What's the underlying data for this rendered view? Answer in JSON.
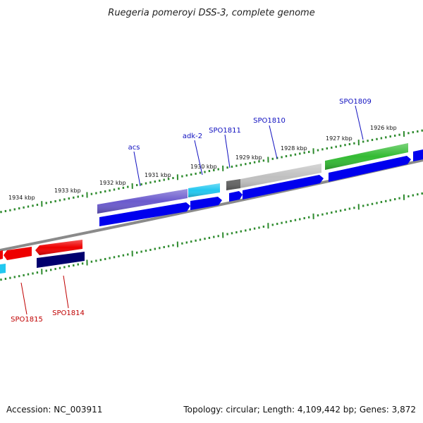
{
  "title": "Ruegeria pomeroyi DSS-3, complete genome",
  "footer": {
    "accession": "Accession: NC_003911",
    "summary": "Topology: circular; Length: 4,109,442 bp; Genes: 3,872"
  },
  "colors": {
    "backbone": "#8a8a8a",
    "tick": "#2e8b2e",
    "forward_label": "#1010c0",
    "reverse_label": "#c00000"
  },
  "tick_labels": [
    "1934 kbp",
    "1933 kbp",
    "1932 kbp",
    "1931 kbp",
    "1930 kbp",
    "1929 kbp",
    "1928 kbp",
    "1927 kbp",
    "1926 kbp"
  ],
  "gene_labels": {
    "forward": [
      "acs",
      "adk-2",
      "SPO1811",
      "SPO1810",
      "SPO1809"
    ],
    "reverse": [
      "SPO1815",
      "SPO1814"
    ]
  },
  "features": [
    {
      "name": "acs-cog-bar",
      "color": "#6a5acd"
    },
    {
      "name": "acs-gene-arrow",
      "color": "#0000ee"
    },
    {
      "name": "adk-2-cog-bar",
      "color": "#22c8f0"
    },
    {
      "name": "adk-2-gene-arrow",
      "color": "#0000ee"
    },
    {
      "name": "spo1811-cog-bar",
      "color": "#666666"
    },
    {
      "name": "spo1811-gene-arrow",
      "color": "#0000ee"
    },
    {
      "name": "spo1810-cog-bar",
      "color": "#c0c0c0"
    },
    {
      "name": "spo1810-gene-arrow",
      "color": "#0000ee"
    },
    {
      "name": "spo1809-cog-bar",
      "color": "#33bb33"
    },
    {
      "name": "spo1809-gene-arrow",
      "color": "#0000ee"
    },
    {
      "name": "spo1815-gene-arrow",
      "color": "#ee0000"
    },
    {
      "name": "spo1815-cog-bar",
      "color": "#22c8f0"
    },
    {
      "name": "spo1814-gene-arrow",
      "color": "#ee0000"
    },
    {
      "name": "spo1814-cog-bar",
      "color": "#00006e"
    }
  ]
}
